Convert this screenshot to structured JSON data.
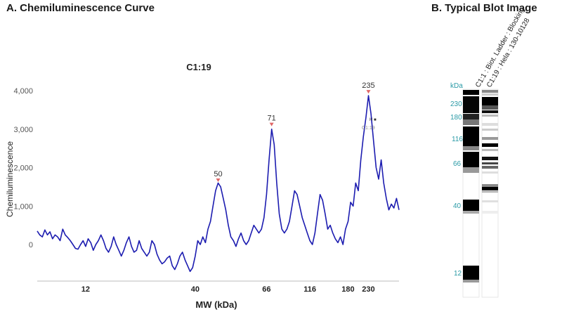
{
  "panel_a": {
    "title": "A. Chemiluminescence Curve"
  },
  "panel_b": {
    "title": "B.   Typical Blot Image",
    "unit_label": "kDa",
    "lanes": [
      {
        "label": "C1:1 : Biot. Ladder : Blocking"
      },
      {
        "label": "C1:19 : Hela : 130-10128"
      }
    ],
    "marker_labels": [
      "230",
      "180",
      "116",
      "66",
      "40",
      "12"
    ]
  },
  "colors": {
    "line": "#1c1cb0",
    "peak_marker": "#e06666",
    "kda_label": "#2a9aa6",
    "grid": "#e6e6e6"
  },
  "chart_data": {
    "type": "line",
    "title": "C1:19",
    "xlabel": "MW (kDa)",
    "ylabel": "Chemiluminescence",
    "x_ticks": [
      "12",
      "40",
      "66",
      "116",
      "180",
      "230"
    ],
    "y_ticks": [
      0,
      1000,
      2000,
      3000,
      4000
    ],
    "y_tick_labels": [
      "0",
      "1,000",
      "2,000",
      "3,000",
      "4,000"
    ],
    "ylim": [
      -1000,
      4300
    ],
    "grid": false,
    "peaks": [
      {
        "label": "50",
        "value": 1570
      },
      {
        "label": "71",
        "value": 3020
      },
      {
        "label": "235",
        "value": 3870
      }
    ],
    "annotation": "C1:19",
    "series": [
      {
        "points": [
          [
            0,
            350
          ],
          [
            1,
            250
          ],
          [
            2,
            200
          ],
          [
            3,
            380
          ],
          [
            4,
            250
          ],
          [
            5,
            330
          ],
          [
            6,
            150
          ],
          [
            7,
            250
          ],
          [
            8,
            200
          ],
          [
            9,
            100
          ],
          [
            10,
            400
          ],
          [
            11,
            250
          ],
          [
            12,
            180
          ],
          [
            13,
            100
          ],
          [
            14,
            0
          ],
          [
            15,
            -100
          ],
          [
            16,
            -120
          ],
          [
            17,
            0
          ],
          [
            18,
            100
          ],
          [
            19,
            -50
          ],
          [
            20,
            150
          ],
          [
            21,
            50
          ],
          [
            22,
            -150
          ],
          [
            23,
            0
          ],
          [
            24,
            100
          ],
          [
            25,
            250
          ],
          [
            26,
            100
          ],
          [
            27,
            -100
          ],
          [
            28,
            -200
          ],
          [
            29,
            -50
          ],
          [
            30,
            200
          ],
          [
            31,
            0
          ],
          [
            32,
            -150
          ],
          [
            33,
            -300
          ],
          [
            34,
            -150
          ],
          [
            35,
            50
          ],
          [
            36,
            200
          ],
          [
            37,
            -50
          ],
          [
            38,
            -200
          ],
          [
            39,
            -150
          ],
          [
            40,
            100
          ],
          [
            41,
            -100
          ],
          [
            42,
            -200
          ],
          [
            43,
            -300
          ],
          [
            44,
            -200
          ],
          [
            45,
            100
          ],
          [
            46,
            0
          ],
          [
            47,
            -250
          ],
          [
            48,
            -400
          ],
          [
            49,
            -500
          ],
          [
            50,
            -450
          ],
          [
            51,
            -350
          ],
          [
            52,
            -300
          ],
          [
            53,
            -550
          ],
          [
            54,
            -650
          ],
          [
            55,
            -500
          ],
          [
            56,
            -300
          ],
          [
            57,
            -200
          ],
          [
            58,
            -400
          ],
          [
            59,
            -550
          ],
          [
            60,
            -700
          ],
          [
            61,
            -600
          ],
          [
            62,
            -300
          ],
          [
            63,
            100
          ],
          [
            64,
            0
          ],
          [
            65,
            200
          ],
          [
            66,
            50
          ],
          [
            67,
            400
          ],
          [
            68,
            600
          ],
          [
            69,
            1000
          ],
          [
            70,
            1400
          ],
          [
            71,
            1600
          ],
          [
            72,
            1500
          ],
          [
            73,
            1200
          ],
          [
            74,
            900
          ],
          [
            75,
            500
          ],
          [
            76,
            200
          ],
          [
            77,
            100
          ],
          [
            78,
            -50
          ],
          [
            79,
            150
          ],
          [
            80,
            300
          ],
          [
            81,
            100
          ],
          [
            82,
            0
          ],
          [
            83,
            100
          ],
          [
            84,
            300
          ],
          [
            85,
            500
          ],
          [
            86,
            400
          ],
          [
            87,
            300
          ],
          [
            88,
            400
          ],
          [
            89,
            700
          ],
          [
            90,
            1300
          ],
          [
            91,
            2200
          ],
          [
            92,
            3000
          ],
          [
            93,
            2600
          ],
          [
            94,
            1600
          ],
          [
            95,
            800
          ],
          [
            96,
            400
          ],
          [
            97,
            300
          ],
          [
            98,
            400
          ],
          [
            99,
            600
          ],
          [
            100,
            1000
          ],
          [
            101,
            1400
          ],
          [
            102,
            1300
          ],
          [
            103,
            1000
          ],
          [
            104,
            700
          ],
          [
            105,
            500
          ],
          [
            106,
            300
          ],
          [
            107,
            100
          ],
          [
            108,
            0
          ],
          [
            109,
            300
          ],
          [
            110,
            800
          ],
          [
            111,
            1300
          ],
          [
            112,
            1150
          ],
          [
            113,
            800
          ],
          [
            114,
            400
          ],
          [
            115,
            500
          ],
          [
            116,
            300
          ],
          [
            117,
            150
          ],
          [
            118,
            50
          ],
          [
            119,
            200
          ],
          [
            120,
            0
          ],
          [
            121,
            400
          ],
          [
            122,
            600
          ],
          [
            123,
            1100
          ],
          [
            124,
            1000
          ],
          [
            125,
            1600
          ],
          [
            126,
            1400
          ],
          [
            127,
            2200
          ],
          [
            128,
            2800
          ],
          [
            129,
            3300
          ],
          [
            130,
            3870
          ],
          [
            131,
            3400
          ],
          [
            132,
            2700
          ],
          [
            133,
            2000
          ],
          [
            134,
            1700
          ],
          [
            135,
            2200
          ],
          [
            136,
            1600
          ],
          [
            137,
            1200
          ],
          [
            138,
            900
          ],
          [
            139,
            1050
          ],
          [
            140,
            950
          ],
          [
            141,
            1200
          ],
          [
            142,
            900
          ]
        ]
      }
    ]
  }
}
